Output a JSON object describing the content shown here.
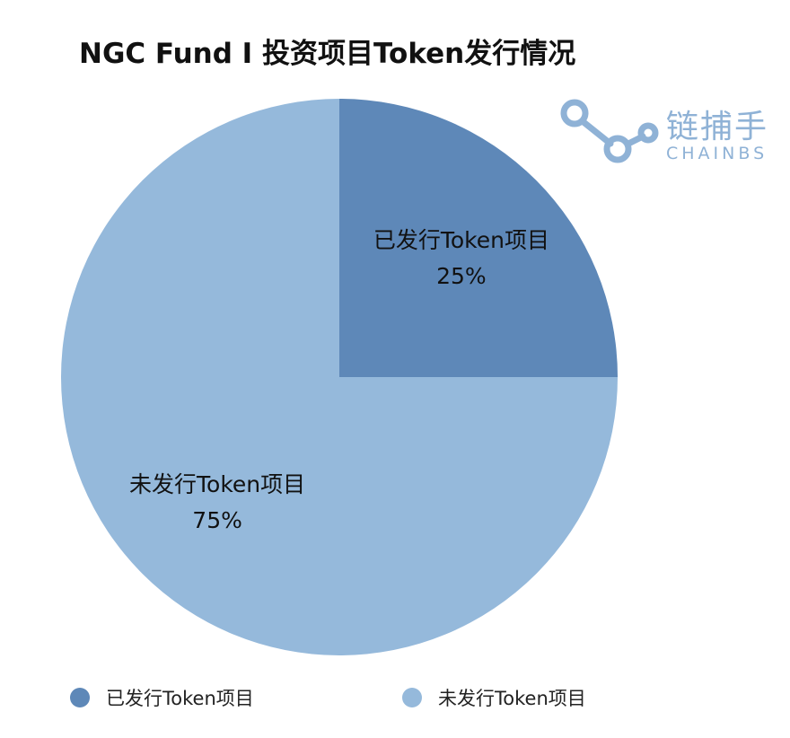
{
  "title": "NGC Fund I 投资项目Token发行情况",
  "logo": {
    "cn": "链捕手",
    "en": "CHAINBS"
  },
  "chart_data": {
    "type": "pie",
    "title": "NGC Fund I 投资项目Token发行情况",
    "slices": [
      {
        "label": "已发行Token项目",
        "value": 25,
        "display": "25%",
        "color": "#5e88b8"
      },
      {
        "label": "未发行Token项目",
        "value": 75,
        "display": "75%",
        "color": "#95b9db"
      }
    ],
    "legend_position": "bottom"
  }
}
